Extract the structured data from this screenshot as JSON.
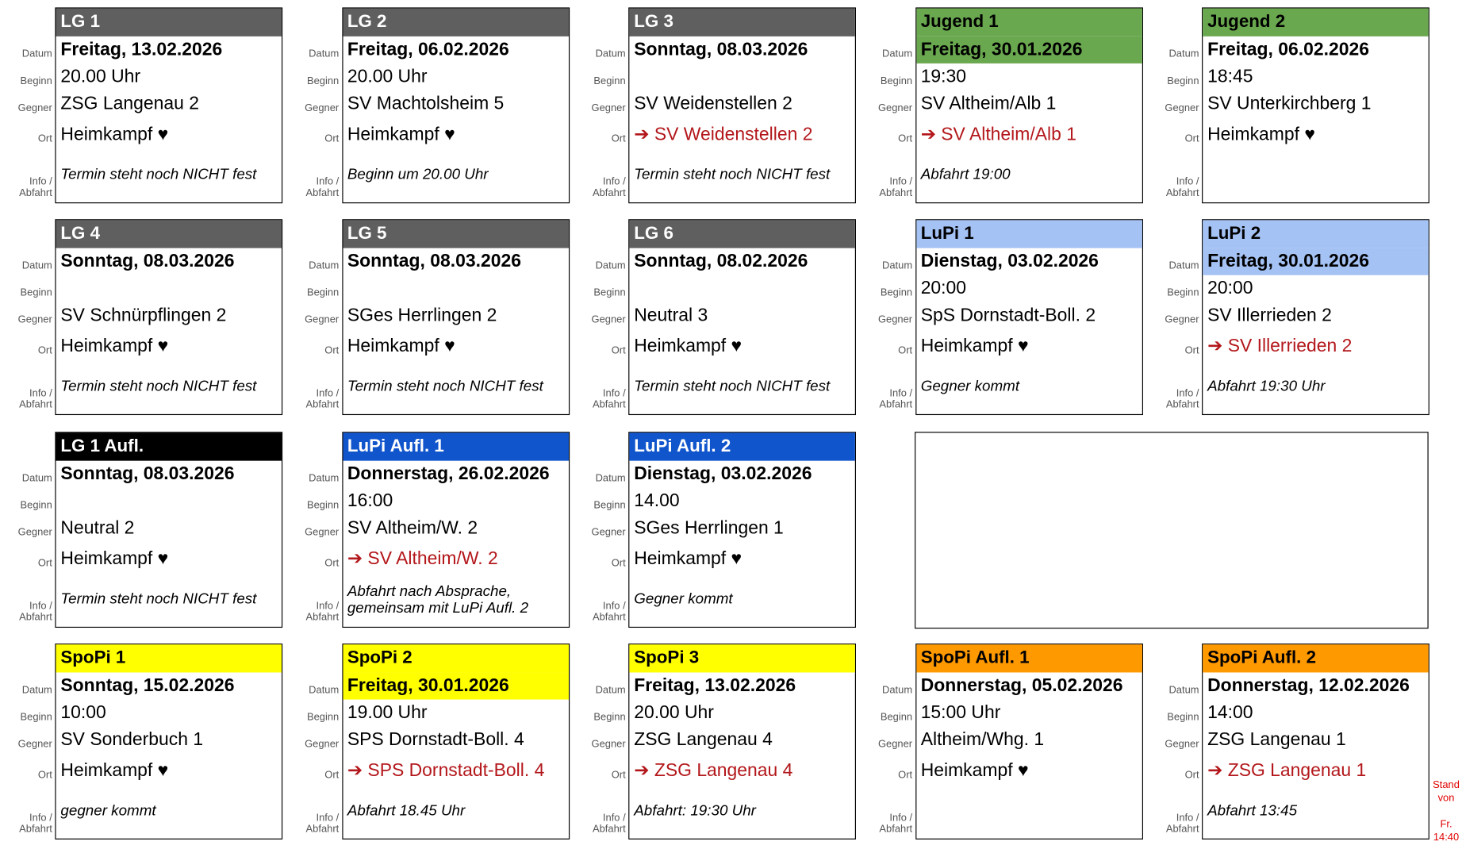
{
  "field_labels": {
    "date": "Datum",
    "start": "Beginn",
    "opponent": "Gegner",
    "place": "Ort",
    "info": [
      "Info /",
      "Abfahrt"
    ]
  },
  "rows": [
    [
      {
        "title": "LG 1",
        "header_color": "#5f5f5f",
        "header_text_color": "#ffffff",
        "date": "Freitag, 13.02.2026",
        "start": "20.00 Uhr",
        "opponent": "ZSG Langenau 2",
        "place": "Heimkampf ♥",
        "place_color": "#000000",
        "info": [
          "Termin steht noch NICHT fest"
        ]
      },
      {
        "title": "LG 2",
        "header_color": "#5f5f5f",
        "header_text_color": "#ffffff",
        "date": "Freitag, 06.02.2026",
        "start": "20.00 Uhr",
        "opponent": "SV Machtolsheim 5",
        "place": "Heimkampf ♥",
        "place_color": "#000000",
        "info": [
          "Beginn um 20.00 Uhr"
        ]
      },
      {
        "title": "LG 3",
        "header_color": "#5f5f5f",
        "header_text_color": "#ffffff",
        "date": "Sonntag, 08.03.2026",
        "opponent": "SV Weidenstellen 2",
        "place": "➔ SV Weidenstellen 2",
        "place_color": "#b3171b",
        "info": [
          "Termin steht noch NICHT fest"
        ]
      },
      {
        "title": "Jugend 1",
        "header_color": "#6aa84f",
        "header_text_color": "#000000",
        "date_highlight": true,
        "date": "Freitag, 30.01.2026",
        "start": "19:30",
        "opponent": "SV Altheim/Alb 1",
        "place": "➔ SV Altheim/Alb 1",
        "place_color": "#b3171b",
        "info": [
          "Abfahrt 19:00"
        ]
      },
      {
        "title": "Jugend 2",
        "header_color": "#6aa84f",
        "header_text_color": "#000000",
        "date": "Freitag, 06.02.2026",
        "start": "18:45",
        "opponent": "SV Unterkirchberg 1",
        "place": "Heimkampf ♥",
        "place_color": "#000000"
      }
    ],
    [
      {
        "title": "LG 4",
        "header_color": "#5f5f5f",
        "header_text_color": "#ffffff",
        "date": "Sonntag, 08.03.2026",
        "opponent": "SV Schnürpflingen 2",
        "place": "Heimkampf ♥",
        "place_color": "#000000",
        "info": [
          "Termin steht noch NICHT fest"
        ]
      },
      {
        "title": "LG 5",
        "header_color": "#5f5f5f",
        "header_text_color": "#ffffff",
        "date": "Sonntag, 08.03.2026",
        "opponent": "SGes Herrlingen 2",
        "place": "Heimkampf ♥",
        "place_color": "#000000",
        "info": [
          "Termin steht noch NICHT fest"
        ]
      },
      {
        "title": "LG 6",
        "header_color": "#5f5f5f",
        "header_text_color": "#ffffff",
        "date": "Sonntag, 08.02.2026",
        "opponent": "Neutral 3",
        "place": "Heimkampf ♥",
        "place_color": "#000000",
        "info": [
          "Termin steht noch NICHT fest"
        ]
      },
      {
        "title": "LuPi 1",
        "header_color": "#a4c2f4",
        "header_text_color": "#000000",
        "date": "Dienstag, 03.02.2026",
        "start": "20:00",
        "opponent": "SpS Dornstadt-Boll. 2",
        "place": "Heimkampf ♥",
        "place_color": "#000000",
        "info": [
          "Gegner kommt"
        ]
      },
      {
        "title": "LuPi 2",
        "header_color": "#a4c2f4",
        "header_text_color": "#000000",
        "date_highlight": true,
        "date": "Freitag, 30.01.2026",
        "start": "20:00",
        "opponent": "SV Illerrieden 2",
        "place": "➔ SV Illerrieden 2",
        "place_color": "#b3171b",
        "info": [
          "Abfahrt 19:30 Uhr"
        ]
      }
    ],
    [
      {
        "title": "LG 1 Aufl.",
        "header_color": "#000000",
        "header_text_color": "#ffffff",
        "date": "Sonntag, 08.03.2026",
        "opponent": "Neutral 2",
        "place": "Heimkampf ♥",
        "place_color": "#000000",
        "info": [
          "Termin steht noch NICHT fest"
        ]
      },
      {
        "title": "LuPi Aufl. 1",
        "header_color": "#1155cc",
        "header_text_color": "#ffffff",
        "date": "Donnerstag, 26.02.2026",
        "start": "16:00",
        "opponent": "SV Altheim/W. 2",
        "place": "➔ SV Altheim/W. 2",
        "place_color": "#b3171b",
        "info": [
          "Abfahrt nach Absprache,",
          "gemeinsam mit LuPi Aufl. 2"
        ]
      },
      {
        "title": "LuPi Aufl. 2",
        "header_color": "#1155cc",
        "header_text_color": "#ffffff",
        "date": "Dienstag, 03.02.2026",
        "start": "14.00",
        "opponent": "SGes Herrlingen 1",
        "place": "Heimkampf ♥",
        "place_color": "#000000",
        "info": [
          "Gegner kommt"
        ]
      }
    ],
    [
      {
        "title": "SpoPi 1",
        "header_color": "#ffff00",
        "header_text_color": "#000000",
        "date": "Sonntag, 15.02.2026",
        "start": "10:00",
        "opponent": "SV Sonderbuch 1",
        "place": "Heimkampf ♥",
        "place_color": "#000000",
        "info": [
          "gegner kommt"
        ]
      },
      {
        "title": "SpoPi 2",
        "header_color": "#ffff00",
        "header_text_color": "#000000",
        "date_highlight": true,
        "date": "Freitag, 30.01.2026",
        "start": "19.00 Uhr",
        "opponent": "SPS Dornstadt-Boll. 4",
        "place": "➔ SPS Dornstadt-Boll. 4",
        "place_color": "#b3171b",
        "info": [
          "Abfahrt 18.45 Uhr"
        ]
      },
      {
        "title": "SpoPi 3",
        "header_color": "#ffff00",
        "header_text_color": "#000000",
        "date": "Freitag, 13.02.2026",
        "start": "20.00 Uhr",
        "opponent": "ZSG Langenau 4",
        "place": "➔ ZSG Langenau 4",
        "place_color": "#b3171b",
        "info": [
          "Abfahrt: 19:30 Uhr"
        ]
      },
      {
        "title": "SpoPi Aufl. 1",
        "header_color": "#ff9900",
        "header_text_color": "#000000",
        "date": "Donnerstag, 05.02.2026",
        "start": "15:00 Uhr",
        "opponent": "Altheim/Whg. 1",
        "place": "Heimkampf ♥",
        "place_color": "#000000"
      },
      {
        "title": "SpoPi Aufl. 2",
        "header_color": "#ff9900",
        "header_text_color": "#000000",
        "date": "Donnerstag, 12.02.2026",
        "start": "14:00",
        "opponent": "ZSG Langenau 1",
        "place": "➔ ZSG Langenau 1",
        "place_color": "#b3171b",
        "info": [
          "Abfahrt 13:45"
        ]
      }
    ]
  ],
  "stand": [
    "Stand",
    "von",
    "Fr.",
    "14:40"
  ]
}
